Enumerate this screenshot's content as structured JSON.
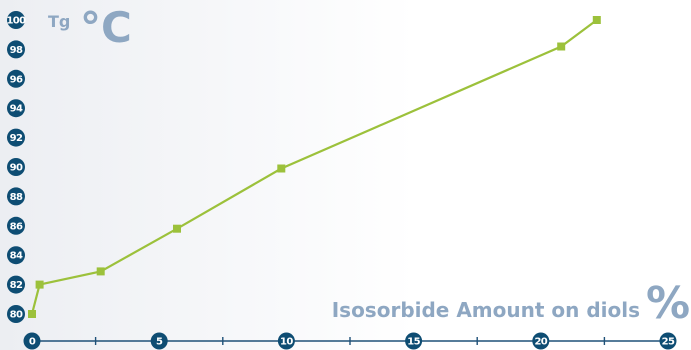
{
  "chart_data": {
    "type": "line",
    "xlabel": "Isosorbide Amount on diols",
    "xlabel_unit": "%",
    "ylabel": "Tg",
    "ylabel_unit": "°C",
    "xlim": [
      0,
      25
    ],
    "ylim": [
      79,
      100
    ],
    "x_ticks_labeled": [
      0,
      5,
      10,
      15,
      20,
      25
    ],
    "x_ticks_minor": [
      2.5,
      7.5,
      12.5,
      17.5,
      22.5
    ],
    "y_ticks": [
      80,
      82,
      84,
      86,
      88,
      90,
      92,
      94,
      96,
      98,
      100
    ],
    "grid": false,
    "colors": {
      "series": "#9cc13b",
      "axis": "#1f5178",
      "tick_badge": "#0e4d73",
      "label": "#8ea7c2"
    },
    "series": [
      {
        "x": [
          0,
          0.3,
          2.7,
          5.7,
          9.8,
          20.8,
          22.2
        ],
        "values": [
          80,
          82,
          82.9,
          85.8,
          89.9,
          98.2,
          100
        ]
      }
    ]
  }
}
